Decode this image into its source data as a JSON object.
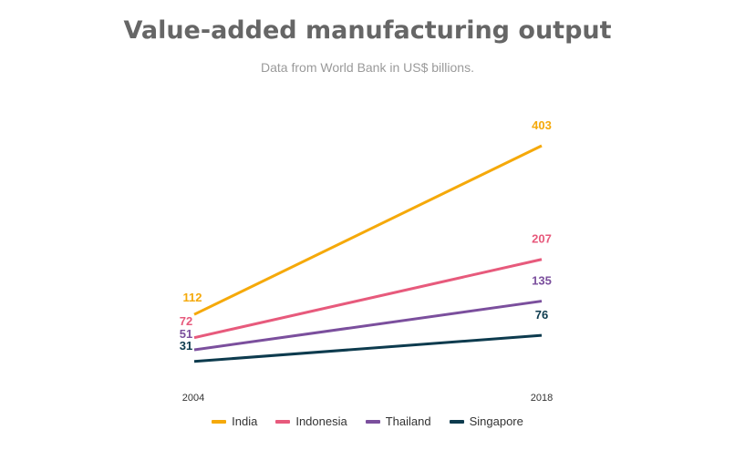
{
  "chart_data": {
    "type": "line",
    "title": "Value-added manufacturing output",
    "subtitle": "Data from World Bank in US$ billions.",
    "x": [
      "2004",
      "2018"
    ],
    "xlabel": "",
    "ylabel": "",
    "grid": false,
    "legend_position": "bottom",
    "series": [
      {
        "name": "India",
        "values": [
          112,
          403
        ],
        "color": "#f5a90a"
      },
      {
        "name": "Indonesia",
        "values": [
          72,
          207
        ],
        "color": "#e75a7c"
      },
      {
        "name": "Thailand",
        "values": [
          51,
          135
        ],
        "color": "#7b4f9d"
      },
      {
        "name": "Singapore",
        "values": [
          31,
          76
        ],
        "color": "#0d3b4e"
      }
    ]
  }
}
